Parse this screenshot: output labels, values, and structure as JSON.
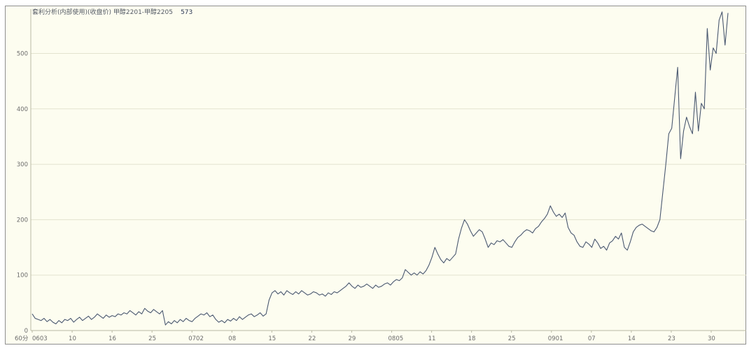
{
  "chart_data": {
    "type": "line",
    "title": "套利分析(内部使用)(收盘价) 甲醇2201-甲醇2205",
    "current_value": "573",
    "x_unit_label": "60分",
    "ylim": [
      0,
      580
    ],
    "y_ticks": [
      "0",
      "100",
      "200",
      "300",
      "400",
      "500"
    ],
    "grid": "horizontal",
    "x_tick_labels": [
      "0603",
      "10",
      "16",
      "25",
      "0702",
      "08",
      "15",
      "22",
      "29",
      "0805",
      "11",
      "18",
      "25",
      "0901",
      "07",
      "14",
      "23",
      "30"
    ],
    "line_color": "#4a5870",
    "series": [
      {
        "values": [
          30,
          22,
          20,
          18,
          22,
          16,
          20,
          15,
          12,
          18,
          14,
          20,
          18,
          22,
          15,
          20,
          24,
          18,
          22,
          26,
          20,
          24,
          30,
          26,
          22,
          28,
          24,
          27,
          25,
          30,
          28,
          32,
          30,
          36,
          32,
          28,
          34,
          30,
          40,
          35,
          32,
          38,
          34,
          30,
          36,
          10,
          16,
          12,
          18,
          14,
          20,
          16,
          22,
          18,
          16,
          22,
          26,
          30,
          28,
          32,
          25,
          28,
          20,
          15,
          18,
          14,
          20,
          17,
          22,
          18,
          25,
          20,
          24,
          28,
          30,
          25,
          28,
          32,
          26,
          30,
          55,
          68,
          72,
          66,
          70,
          64,
          72,
          68,
          65,
          70,
          66,
          72,
          68,
          64,
          66,
          70,
          68,
          64,
          66,
          62,
          68,
          65,
          70,
          68,
          72,
          76,
          80,
          86,
          80,
          76,
          82,
          78,
          80,
          84,
          80,
          76,
          82,
          78,
          80,
          84,
          86,
          82,
          88,
          92,
          90,
          95,
          110,
          105,
          100,
          104,
          100,
          106,
          102,
          108,
          118,
          132,
          150,
          138,
          128,
          122,
          130,
          126,
          132,
          138,
          165,
          185,
          200,
          192,
          180,
          170,
          176,
          182,
          178,
          165,
          150,
          158,
          155,
          162,
          160,
          164,
          158,
          152,
          150,
          160,
          168,
          172,
          178,
          182,
          180,
          176,
          184,
          188,
          196,
          202,
          210,
          225,
          214,
          206,
          210,
          204,
          212,
          186,
          176,
          172,
          160,
          152,
          150,
          160,
          156,
          150,
          165,
          158,
          148,
          152,
          145,
          158,
          162,
          170,
          165,
          176,
          150,
          145,
          160,
          178,
          186,
          190,
          192,
          188,
          184,
          180,
          178,
          186,
          200,
          250,
          300,
          355,
          365,
          420,
          475,
          310,
          360,
          385,
          368,
          355,
          430,
          360,
          410,
          400,
          545,
          470,
          510,
          500,
          560,
          575,
          515,
          573
        ]
      }
    ]
  }
}
